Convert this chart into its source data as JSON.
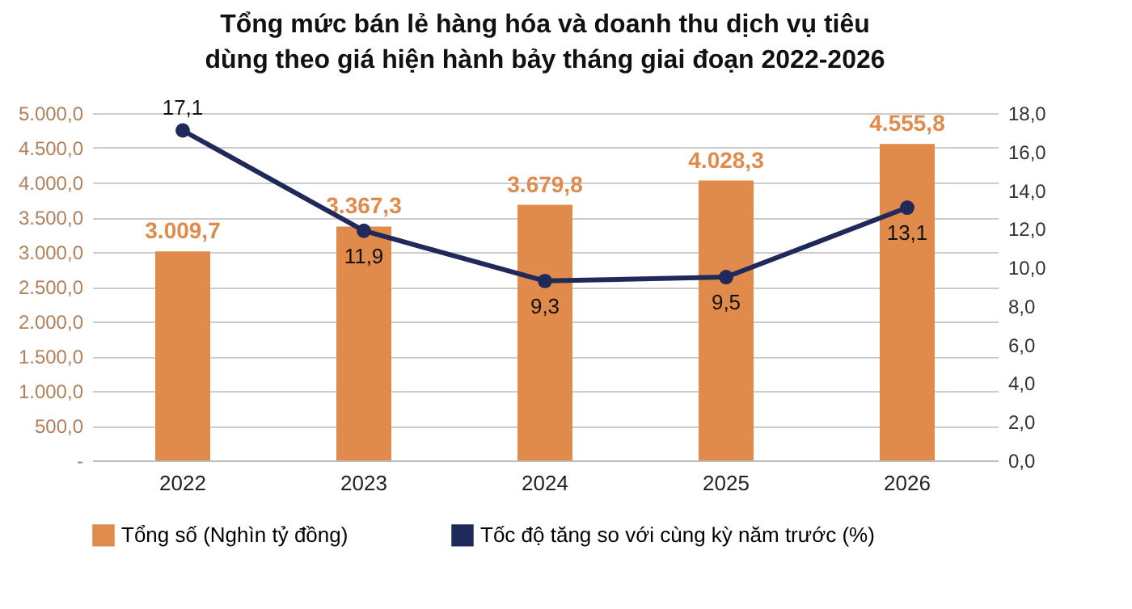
{
  "chart_data": {
    "type": "bar",
    "title": "Tổng mức bán lẻ hàng hóa và doanh thu dịch vụ tiêu dùng theo giá hiện hành bảy tháng giai đoạn 2022-2026",
    "categories": [
      "2022",
      "2023",
      "2024",
      "2025",
      "2026"
    ],
    "series": [
      {
        "name": "Tổng số (Nghìn tỷ đồng)",
        "color": "#e08a4c",
        "values": [
          3009.7,
          3367.3,
          3679.8,
          4028.3,
          4555.8
        ],
        "value_labels": [
          "3.009,7",
          "3.367,3",
          "3.679,8",
          "4.028,3",
          "4.555,8"
        ]
      },
      {
        "name": "Tốc độ tăng so với cùng kỳ năm trước (%)",
        "type": "line",
        "axis": "y2",
        "color": "#1f2a5a",
        "marker": "circle",
        "values": [
          17.1,
          11.9,
          9.3,
          9.5,
          13.1
        ],
        "value_labels": [
          "17,1",
          "11,9",
          "9,3",
          "9,5",
          "13,1"
        ]
      }
    ],
    "ylim": [
      0,
      5000
    ],
    "yticks": [
      {
        "value": 0,
        "label": "-"
      },
      {
        "value": 500,
        "label": "500,0"
      },
      {
        "value": 1000,
        "label": "1.000,0"
      },
      {
        "value": 1500,
        "label": "1.500,0"
      },
      {
        "value": 2000,
        "label": "2.000,0"
      },
      {
        "value": 2500,
        "label": "2.500,0"
      },
      {
        "value": 3000,
        "label": "3.000,0"
      },
      {
        "value": 3500,
        "label": "3.500,0"
      },
      {
        "value": 4000,
        "label": "4.000,0"
      },
      {
        "value": 4500,
        "label": "4.500,0"
      },
      {
        "value": 5000,
        "label": "5.000,0"
      }
    ],
    "y2lim": [
      0,
      18
    ],
    "y2ticks": [
      {
        "value": 0,
        "label": "0,0"
      },
      {
        "value": 2,
        "label": "2,0"
      },
      {
        "value": 4,
        "label": "4,0"
      },
      {
        "value": 6,
        "label": "6,0"
      },
      {
        "value": 8,
        "label": "8,0"
      },
      {
        "value": 10,
        "label": "10,0"
      },
      {
        "value": 12,
        "label": "12,0"
      },
      {
        "value": 14,
        "label": "14,0"
      },
      {
        "value": 16,
        "label": "16,0"
      },
      {
        "value": 18,
        "label": "18,0"
      }
    ],
    "grid": "y",
    "legend": "bottom"
  }
}
